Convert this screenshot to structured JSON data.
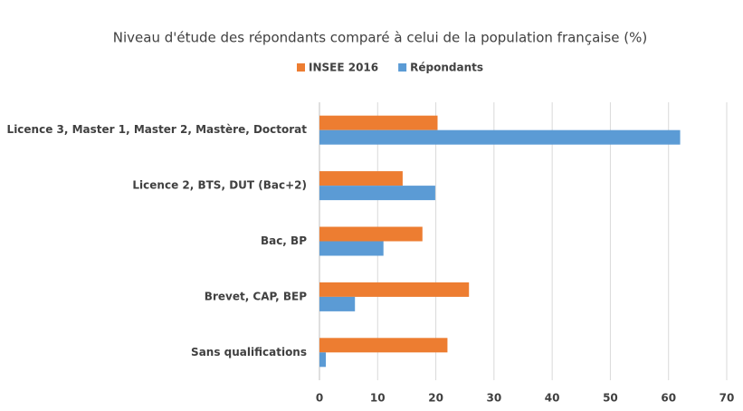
{
  "chart_data": {
    "type": "barh",
    "title": "Niveau d'étude des répondants comparé à celui de la population française (%)",
    "categories": [
      "Licence 3, Master 1, Master 2, Mastère, Doctorat",
      "Licence 2, BTS, DUT (Bac+2)",
      "Bac, BP",
      "Brevet, CAP, BEP",
      "Sans qualifications"
    ],
    "series": [
      {
        "name": "INSEE 2016",
        "color": "#ed7d31",
        "values": [
          20.3,
          14.3,
          17.7,
          25.7,
          22.0
        ]
      },
      {
        "name": "Répondants",
        "color": "#5b9bd5",
        "values": [
          62.0,
          19.9,
          11.0,
          6.1,
          1.1
        ]
      }
    ],
    "xlim": [
      0,
      70
    ],
    "xticks": [
      0,
      10,
      20,
      30,
      40,
      50,
      60,
      70
    ],
    "grid": true,
    "legend": "top"
  }
}
